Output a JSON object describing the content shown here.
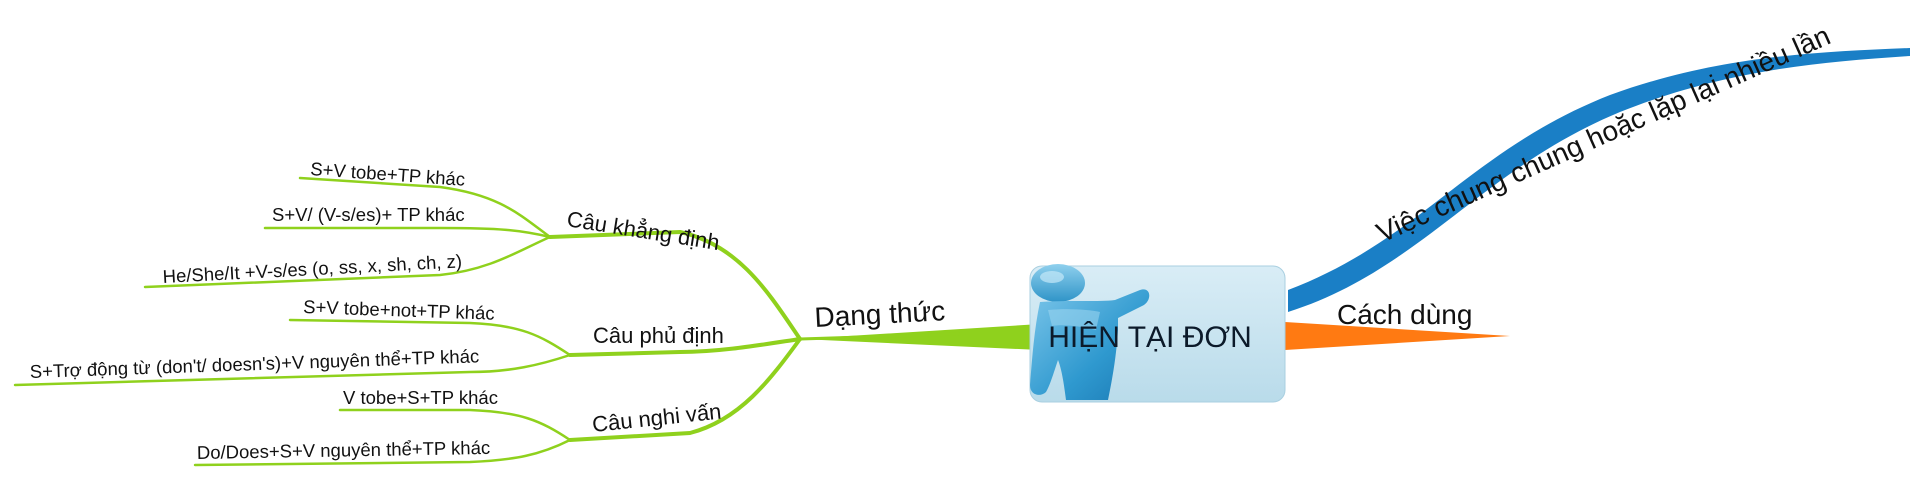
{
  "central": {
    "title": "HIỆN TẠI ĐƠN",
    "icon": "presenter-figure-icon"
  },
  "branches": {
    "usage_case": "Việc chung chung hoặc lặp lại nhiều lần",
    "usage": "Cách dùng",
    "form": "Dạng thức"
  },
  "sub": {
    "affirmative": "Câu khẳng định",
    "negative": "Câu phủ định",
    "question": "Câu nghi vấn"
  },
  "leaves": {
    "aff_1": "S+V tobe+TP khác",
    "aff_2": "S+V/ (V-s/es)+ TP khác",
    "aff_3": "He/She/It +V-s/es (o, ss, x, sh, ch, z)",
    "neg_1": "S+V tobe+not+TP khác",
    "neg_2": "S+Trợ động từ (don't/ doesn's)+V nguyên thể+TP khác",
    "q_1": "V tobe+S+TP khác",
    "q_2": "Do/Does+S+V nguyên thể+TP khác"
  },
  "colors": {
    "green_branch": "#8fd11d",
    "blue_branch": "#1a7fc6",
    "orange_branch": "#ff7a12",
    "central_box": "#c9e3ef",
    "figure": "#3aa2d2"
  }
}
